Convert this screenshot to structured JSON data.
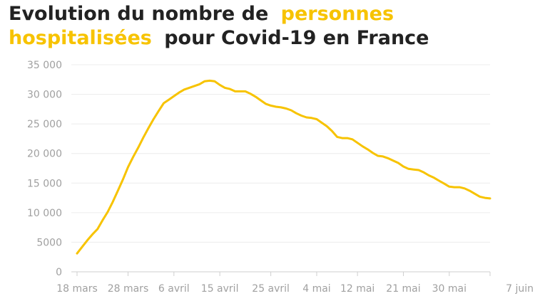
{
  "chart_data": {
    "type": "line",
    "title": [
      "Evolution du nombre de",
      "personnes",
      "hospitalisées",
      "pour Covid-19 en France"
    ],
    "title_highlight": [
      false,
      true,
      true,
      false
    ],
    "title_color": "#222222",
    "highlight_color": "#f7c300",
    "x": [
      "18 mars",
      "19 mars",
      "20 mars",
      "21 mars",
      "22 mars",
      "23 mars",
      "24 mars",
      "25 mars",
      "26 mars",
      "27 mars",
      "28 mars",
      "29 mars",
      "30 mars",
      "31 mars",
      "1 avril",
      "2 avril",
      "3 avril",
      "4 avril",
      "5 avril",
      "6 avril",
      "7 avril",
      "8 avril",
      "9 avril",
      "10 avril",
      "11 avril",
      "12 avril",
      "13 avril",
      "14 avril",
      "15 avril",
      "16 avril",
      "17 avril",
      "18 avril",
      "19 avril",
      "20 avril",
      "21 avril",
      "22 avril",
      "23 avril",
      "24 avril",
      "25 avril",
      "26 avril",
      "27 avril",
      "28 avril",
      "29 avril",
      "30 avril",
      "1 mai",
      "2 mai",
      "3 mai",
      "4 mai",
      "5 mai",
      "6 mai",
      "7 mai",
      "8 mai",
      "9 mai",
      "10 mai",
      "11 mai",
      "12 mai",
      "13 mai",
      "14 mai",
      "15 mai",
      "16 mai",
      "17 mai",
      "18 mai",
      "19 mai",
      "20 mai",
      "21 mai",
      "22 mai",
      "23 mai",
      "24 mai",
      "25 mai",
      "26 mai",
      "27 mai",
      "28 mai",
      "29 mai",
      "30 mai",
      "31 mai",
      "1 juin",
      "2 juin",
      "3 juin",
      "4 juin",
      "5 juin",
      "6 juin",
      "7 juin"
    ],
    "series": [
      {
        "name": "personnes hospitalisées",
        "color": "#f7c300",
        "values": [
          3100,
          4200,
          5300,
          6300,
          7200,
          8700,
          10100,
          11800,
          13700,
          15600,
          17700,
          19400,
          21000,
          22700,
          24300,
          25800,
          27200,
          28500,
          29100,
          29700,
          30300,
          30800,
          31100,
          31400,
          31700,
          32200,
          32300,
          32200,
          31600,
          31100,
          30900,
          30500,
          30500,
          30500,
          30100,
          29600,
          29000,
          28400,
          28100,
          27900,
          27800,
          27600,
          27300,
          26800,
          26400,
          26100,
          26000,
          25800,
          25200,
          24600,
          23800,
          22800,
          22600,
          22600,
          22400,
          21800,
          21200,
          20700,
          20100,
          19600,
          19500,
          19200,
          18800,
          18400,
          17800,
          17400,
          17300,
          17200,
          16800,
          16300,
          15900,
          15400,
          14900,
          14400,
          14300,
          14300,
          14100,
          13700,
          13200,
          12700,
          12500,
          12400
        ]
      }
    ],
    "xticks": [
      "18 mars",
      "28 mars",
      "6 avril",
      "15 avril",
      "25 avril",
      "4 mai",
      "12 mai",
      "21 mai",
      "30 mai",
      "7 juin"
    ],
    "ylim": [
      0,
      35000
    ],
    "yticks": [
      0,
      5000,
      {
        "value": 10000,
        "label": "10 000"
      },
      {
        "value": 15000,
        "label": "15 000"
      },
      {
        "value": 20000,
        "label": "20 000"
      },
      {
        "value": 25000,
        "label": "25 000"
      },
      {
        "value": 30000,
        "label": "30 000"
      },
      {
        "value": 35000,
        "label": "35 000"
      }
    ],
    "grid": true
  }
}
